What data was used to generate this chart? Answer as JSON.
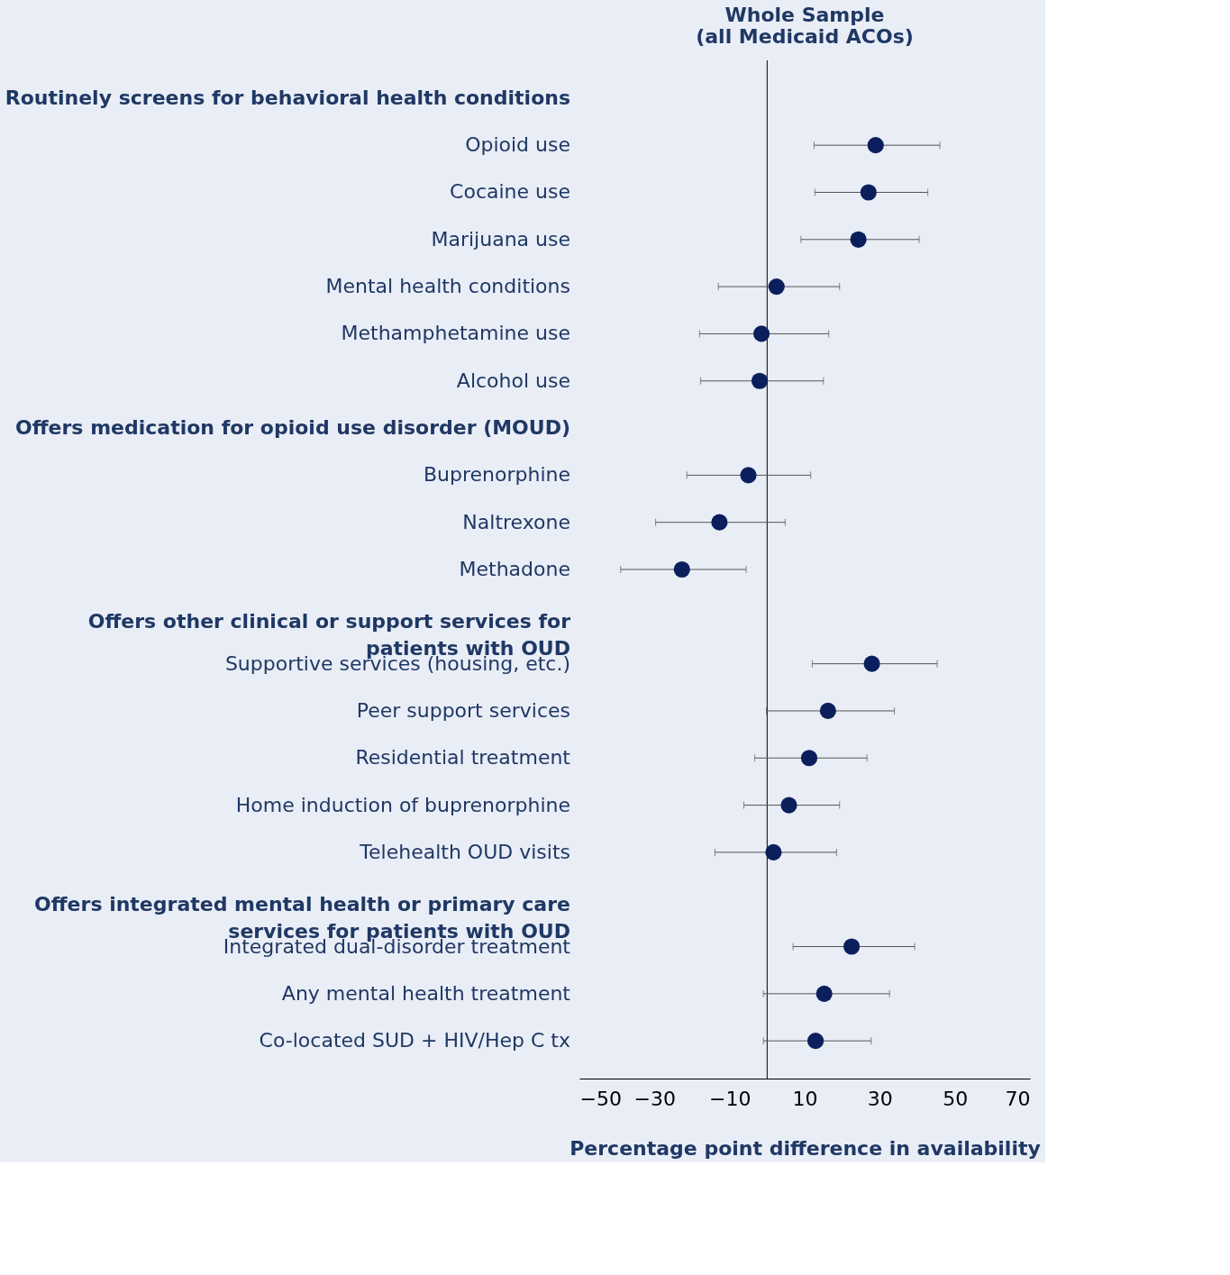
{
  "chart_data": {
    "type": "scatter",
    "title": "Whole Sample (all Medicaid ACOs)",
    "xlabel": "Percentage point difference in availability",
    "categories": [
      "Routinely screens for behavioral health conditions",
      "Opioid use",
      "Cocaine use",
      "Marijuana use",
      "Mental health conditions",
      "Methamphetamine use",
      "Alcohol use",
      "Offers medication for opioid use disorder (MOUD)",
      "Buprenorphine",
      "Naltrexone",
      "Methadone",
      "Offers other clinical or support services for patients with OUD",
      "Supportive services (housing, etc.)",
      "Peer support services",
      "Residential treatment",
      "Home induction of buprenorphine",
      "Telehealth OUD visits",
      "Offers integrated mental health or primary care services for patients with OUD",
      "Integrated dual-disorder treatment",
      "Any mental health treatment",
      "Co-located SUD + HIV/Hep C tx"
    ],
    "orientation": "horizontal",
    "color": "#0b1f5c",
    "values": [
      null,
      28.9,
      27,
      24.3,
      2.5,
      -1.5,
      -2,
      null,
      -5,
      -12.7,
      -22.7,
      null,
      27.9,
      16.2,
      11.2,
      5.8,
      1.7,
      null,
      22.5,
      15.2,
      12.9
    ],
    "errors": [
      null,
      [
        12.5,
        46
      ],
      [
        12.7,
        42.8
      ],
      [
        9,
        40.5
      ],
      [
        -13,
        19.3
      ],
      [
        -18,
        16.4
      ],
      [
        -17.7,
        15
      ],
      null,
      [
        -21.4,
        11.6
      ],
      [
        -29.7,
        4.8
      ],
      [
        -39,
        -5.6
      ],
      null,
      [
        12,
        45.3
      ],
      [
        -0.2,
        33.9
      ],
      [
        -3.3,
        26.6
      ],
      [
        -6.2,
        19.3
      ],
      [
        -13.9,
        18.5
      ],
      null,
      [
        6.9,
        39.3
      ],
      [
        -1,
        32.6
      ],
      [
        -1,
        27.7
      ]
    ],
    "xlim": [
      -50,
      70
    ],
    "xticks": [
      -50,
      -30,
      -10,
      10,
      30,
      50,
      70
    ],
    "ref_lines": [
      {
        "axis": "x",
        "value": 0,
        "label": null,
        "color": "#000000"
      }
    ],
    "marker": "circle",
    "grid": false
  }
}
